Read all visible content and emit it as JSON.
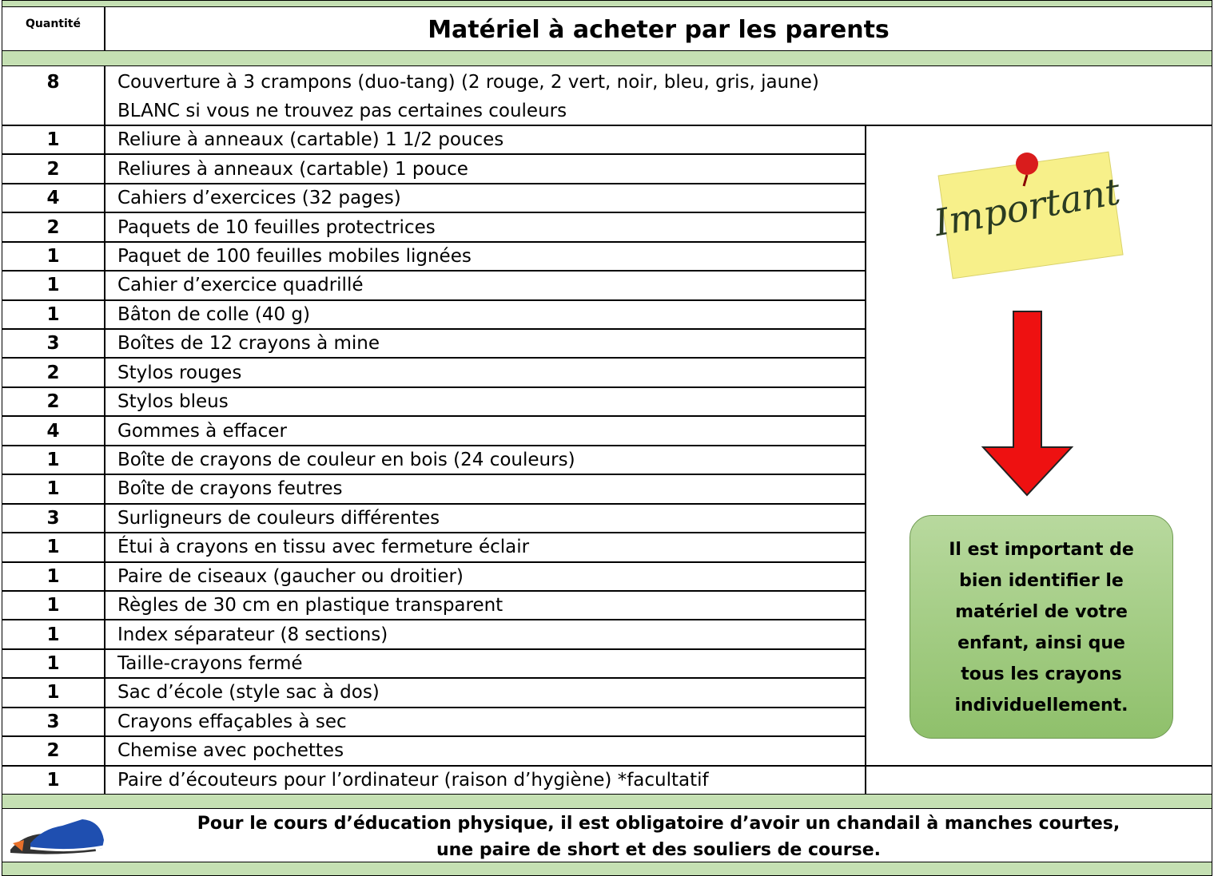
{
  "header": {
    "quantity_label": "Quantité",
    "title": "Matériel à acheter par les parents"
  },
  "items": [
    {
      "quantity": 8,
      "lines": [
        "Couverture à 3 crampons (duo-tang) (2 rouge, 2 vert, noir, bleu, gris, jaune)",
        "BLANC si vous ne trouvez pas certaines couleurs"
      ]
    },
    {
      "quantity": 1,
      "lines": [
        "Reliure à anneaux (cartable) 1 1/2 pouces"
      ]
    },
    {
      "quantity": 2,
      "lines": [
        "Reliures à anneaux (cartable) 1 pouce"
      ]
    },
    {
      "quantity": 4,
      "lines": [
        "Cahiers d’exercices (32 pages)"
      ]
    },
    {
      "quantity": 2,
      "lines": [
        "Paquets de 10 feuilles protectrices"
      ]
    },
    {
      "quantity": 1,
      "lines": [
        "Paquet de 100 feuilles mobiles lignées"
      ]
    },
    {
      "quantity": 1,
      "lines": [
        "Cahier d’exercice quadrillé"
      ]
    },
    {
      "quantity": 1,
      "lines": [
        "Bâton de colle (40 g)"
      ]
    },
    {
      "quantity": 3,
      "lines": [
        "Boîtes de 12 crayons à mine"
      ]
    },
    {
      "quantity": 2,
      "lines": [
        "Stylos rouges"
      ]
    },
    {
      "quantity": 2,
      "lines": [
        "Stylos bleus"
      ]
    },
    {
      "quantity": 4,
      "lines": [
        "Gommes à effacer"
      ]
    },
    {
      "quantity": 1,
      "lines": [
        "Boîte de crayons de couleur en bois (24 couleurs)"
      ]
    },
    {
      "quantity": 1,
      "lines": [
        "Boîte de crayons feutres"
      ]
    },
    {
      "quantity": 3,
      "lines": [
        "Surligneurs de couleurs différentes"
      ]
    },
    {
      "quantity": 1,
      "lines": [
        "Étui à crayons en tissu avec fermeture éclair"
      ]
    },
    {
      "quantity": 1,
      "lines": [
        "Paire de ciseaux (gaucher ou droitier)"
      ]
    },
    {
      "quantity": 1,
      "lines": [
        "Règles de 30 cm en plastique transparent"
      ]
    },
    {
      "quantity": 1,
      "lines": [
        "Index séparateur (8 sections)"
      ]
    },
    {
      "quantity": 1,
      "lines": [
        "Taille-crayons fermé"
      ]
    },
    {
      "quantity": 1,
      "lines": [
        "Sac d’école (style sac à dos)"
      ]
    },
    {
      "quantity": 3,
      "lines": [
        "Crayons effaçables à sec"
      ]
    },
    {
      "quantity": 2,
      "lines": [
        "Chemise avec pochettes"
      ]
    },
    {
      "quantity": 1,
      "lines": [
        "Paire d’écouteurs pour l’ordinateur (raison d’hygiène) *facultatif"
      ]
    }
  ],
  "sticky_note": {
    "text": "Important"
  },
  "note": {
    "lines": [
      "Il est important de",
      "bien identifier le",
      "matériel de votre",
      "enfant, ainsi que",
      "tous les crayons",
      "individuellement."
    ]
  },
  "footer": {
    "lines": [
      "Pour le cours d’éducation physique, il est obligatoire d’avoir un chandail à manches courtes,",
      "une paire de short et des souliers de course."
    ]
  }
}
